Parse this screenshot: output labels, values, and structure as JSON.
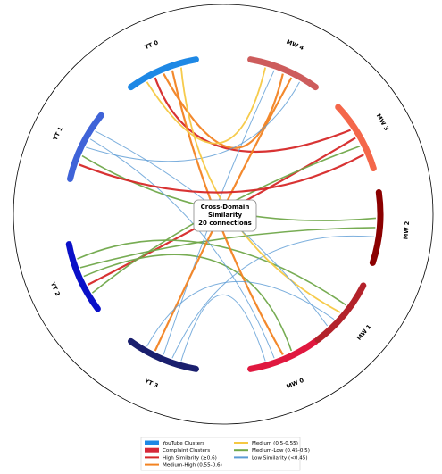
{
  "chart_data": {
    "type": "chord",
    "title": "",
    "center_label": [
      "Cross-Domain",
      "Similarity",
      "20 connections"
    ],
    "segments": [
      {
        "id": "YT0",
        "label": "YT 0",
        "group": "youtube",
        "color": "#1e88e5"
      },
      {
        "id": "YT1",
        "label": "YT 1",
        "group": "youtube",
        "color": "#3f63d8"
      },
      {
        "id": "YT2",
        "label": "YT 2",
        "group": "youtube",
        "color": "#0a10c8"
      },
      {
        "id": "YT3",
        "label": "YT 3",
        "group": "youtube",
        "color": "#1a1f6e"
      },
      {
        "id": "MW0",
        "label": "MW 0",
        "group": "complaint",
        "color": "#e0183f"
      },
      {
        "id": "MW1",
        "label": "MW 1",
        "group": "complaint",
        "color": "#b3222a"
      },
      {
        "id": "MW2",
        "label": "MW 2",
        "group": "complaint",
        "color": "#8b0000"
      },
      {
        "id": "MW3",
        "label": "MW 3",
        "group": "complaint",
        "color": "#f4674a"
      },
      {
        "id": "MW4",
        "label": "MW 4",
        "group": "complaint",
        "color": "#cd5c5c"
      }
    ],
    "similarity_colors": {
      "high": "#d62828",
      "medium_high": "#f28322",
      "medium": "#f5c842",
      "medium_low": "#70a84a",
      "low": "#5b9bd5"
    },
    "connections": [
      {
        "from": "YT0",
        "to": "MW3",
        "level": "high"
      },
      {
        "from": "YT2",
        "to": "MW3",
        "level": "high"
      },
      {
        "from": "YT1",
        "to": "MW2",
        "level": "medium_low"
      },
      {
        "from": "YT2",
        "to": "MW0",
        "level": "medium_low"
      },
      {
        "from": "YT2",
        "to": "MW2",
        "level": "medium_low"
      },
      {
        "from": "YT2",
        "to": "MW1",
        "level": "medium_low"
      },
      {
        "from": "YT3",
        "to": "MW2",
        "level": "low"
      },
      {
        "from": "YT3",
        "to": "MW4",
        "level": "low"
      },
      {
        "from": "YT0",
        "to": "MW4",
        "level": "medium_high"
      },
      {
        "from": "YT3",
        "to": "MW4",
        "level": "medium_high"
      },
      {
        "from": "YT0",
        "to": "MW0",
        "level": "medium_high"
      },
      {
        "from": "YT1",
        "to": "MW4",
        "level": "low"
      },
      {
        "from": "YT1",
        "to": "MW0",
        "level": "low"
      },
      {
        "from": "YT0",
        "to": "MW1",
        "level": "medium"
      },
      {
        "from": "YT0",
        "to": "MW4",
        "level": "medium"
      },
      {
        "from": "YT3",
        "to": "MW1",
        "level": "low"
      },
      {
        "from": "YT1",
        "to": "MW1",
        "level": "low"
      },
      {
        "from": "YT3",
        "to": "MW0",
        "level": "low"
      },
      {
        "from": "YT2",
        "to": "MW3",
        "level": "medium_low"
      },
      {
        "from": "YT1",
        "to": "MW3",
        "level": "high"
      }
    ],
    "legend": [
      {
        "label": "YouTube Clusters",
        "kind": "patch",
        "color": "#1e88e5"
      },
      {
        "label": "Complaint Clusters",
        "kind": "patch",
        "color": "#d62839"
      },
      {
        "label": "High Similarity (≥0.6)",
        "kind": "line",
        "color": "#d62828"
      },
      {
        "label": "Medium-High (0.55-0.6)",
        "kind": "line",
        "color": "#f28322"
      },
      {
        "label": "Medium (0.5-0.55)",
        "kind": "line",
        "color": "#f5c842"
      },
      {
        "label": "Medium-Low (0.45-0.5)",
        "kind": "line",
        "color": "#70a84a"
      },
      {
        "label": "Low Similarity (<0.45)",
        "kind": "line",
        "color": "#5b9bd5"
      }
    ]
  }
}
